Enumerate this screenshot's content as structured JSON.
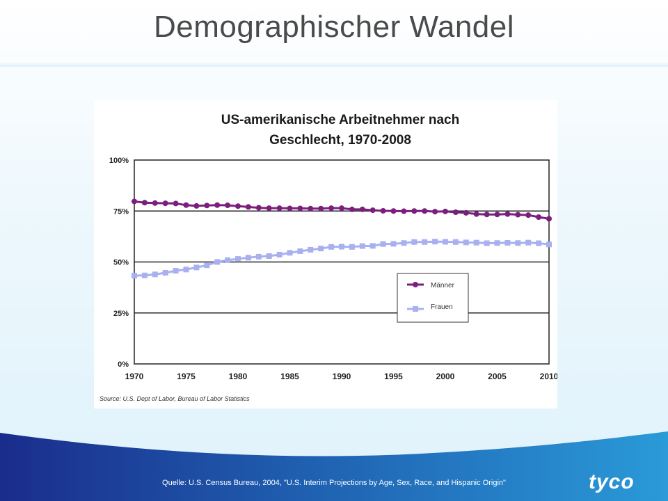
{
  "slide": {
    "title": "Demographischer Wandel",
    "footer_source": "Quelle:  U.S. Census Bureau, 2004, \"U.S. Interim Projections by Age, Sex, Race, and Hispanic Origin\"",
    "logo_text": "tyco"
  },
  "chart_data": {
    "type": "line",
    "title_line1": "US-amerikanische Arbeitnehmer nach",
    "title_line2": "Geschlecht, 1970-2008",
    "source": "Source: U.S. Dept of Labor, Bureau of Labor Statistics",
    "xlim": [
      1970,
      2010
    ],
    "ylim": [
      0,
      100
    ],
    "x_ticks": [
      "1970",
      "1975",
      "1980",
      "1985",
      "1990",
      "1995",
      "2000",
      "2005",
      "2010"
    ],
    "y_ticks": [
      "0%",
      "25%",
      "50%",
      "75%",
      "100%"
    ],
    "gridlines": true,
    "legend_position": "lower-right",
    "x": [
      1970,
      1971,
      1972,
      1973,
      1974,
      1975,
      1976,
      1977,
      1978,
      1979,
      1980,
      1981,
      1982,
      1983,
      1984,
      1985,
      1986,
      1987,
      1988,
      1989,
      1990,
      1991,
      1992,
      1993,
      1994,
      1995,
      1996,
      1997,
      1998,
      1999,
      2000,
      2001,
      2002,
      2003,
      2004,
      2005,
      2006,
      2007,
      2008,
      2009,
      2010
    ],
    "series": [
      {
        "name": "Männer",
        "color": "#7b1f7e",
        "marker": "circle",
        "values": [
          79.7,
          79.1,
          78.9,
          78.8,
          78.7,
          77.9,
          77.5,
          77.7,
          77.9,
          77.8,
          77.4,
          77.0,
          76.6,
          76.4,
          76.4,
          76.3,
          76.3,
          76.2,
          76.2,
          76.4,
          76.4,
          75.8,
          75.8,
          75.4,
          75.1,
          75.0,
          74.9,
          75.0,
          75.0,
          74.7,
          74.8,
          74.4,
          74.1,
          73.5,
          73.3,
          73.3,
          73.5,
          73.2,
          73.0,
          72.0,
          71.2
        ]
      },
      {
        "name": "Frauen",
        "color": "#a8b0f0",
        "marker": "square",
        "values": [
          43.3,
          43.4,
          43.9,
          44.7,
          45.7,
          46.3,
          47.3,
          48.4,
          50.0,
          50.9,
          51.5,
          52.1,
          52.6,
          52.9,
          53.6,
          54.5,
          55.3,
          56.0,
          56.6,
          57.4,
          57.5,
          57.4,
          57.8,
          57.9,
          58.8,
          58.9,
          59.3,
          59.8,
          59.8,
          60.0,
          59.9,
          59.8,
          59.6,
          59.5,
          59.2,
          59.3,
          59.4,
          59.3,
          59.5,
          59.2,
          58.6
        ]
      }
    ]
  }
}
